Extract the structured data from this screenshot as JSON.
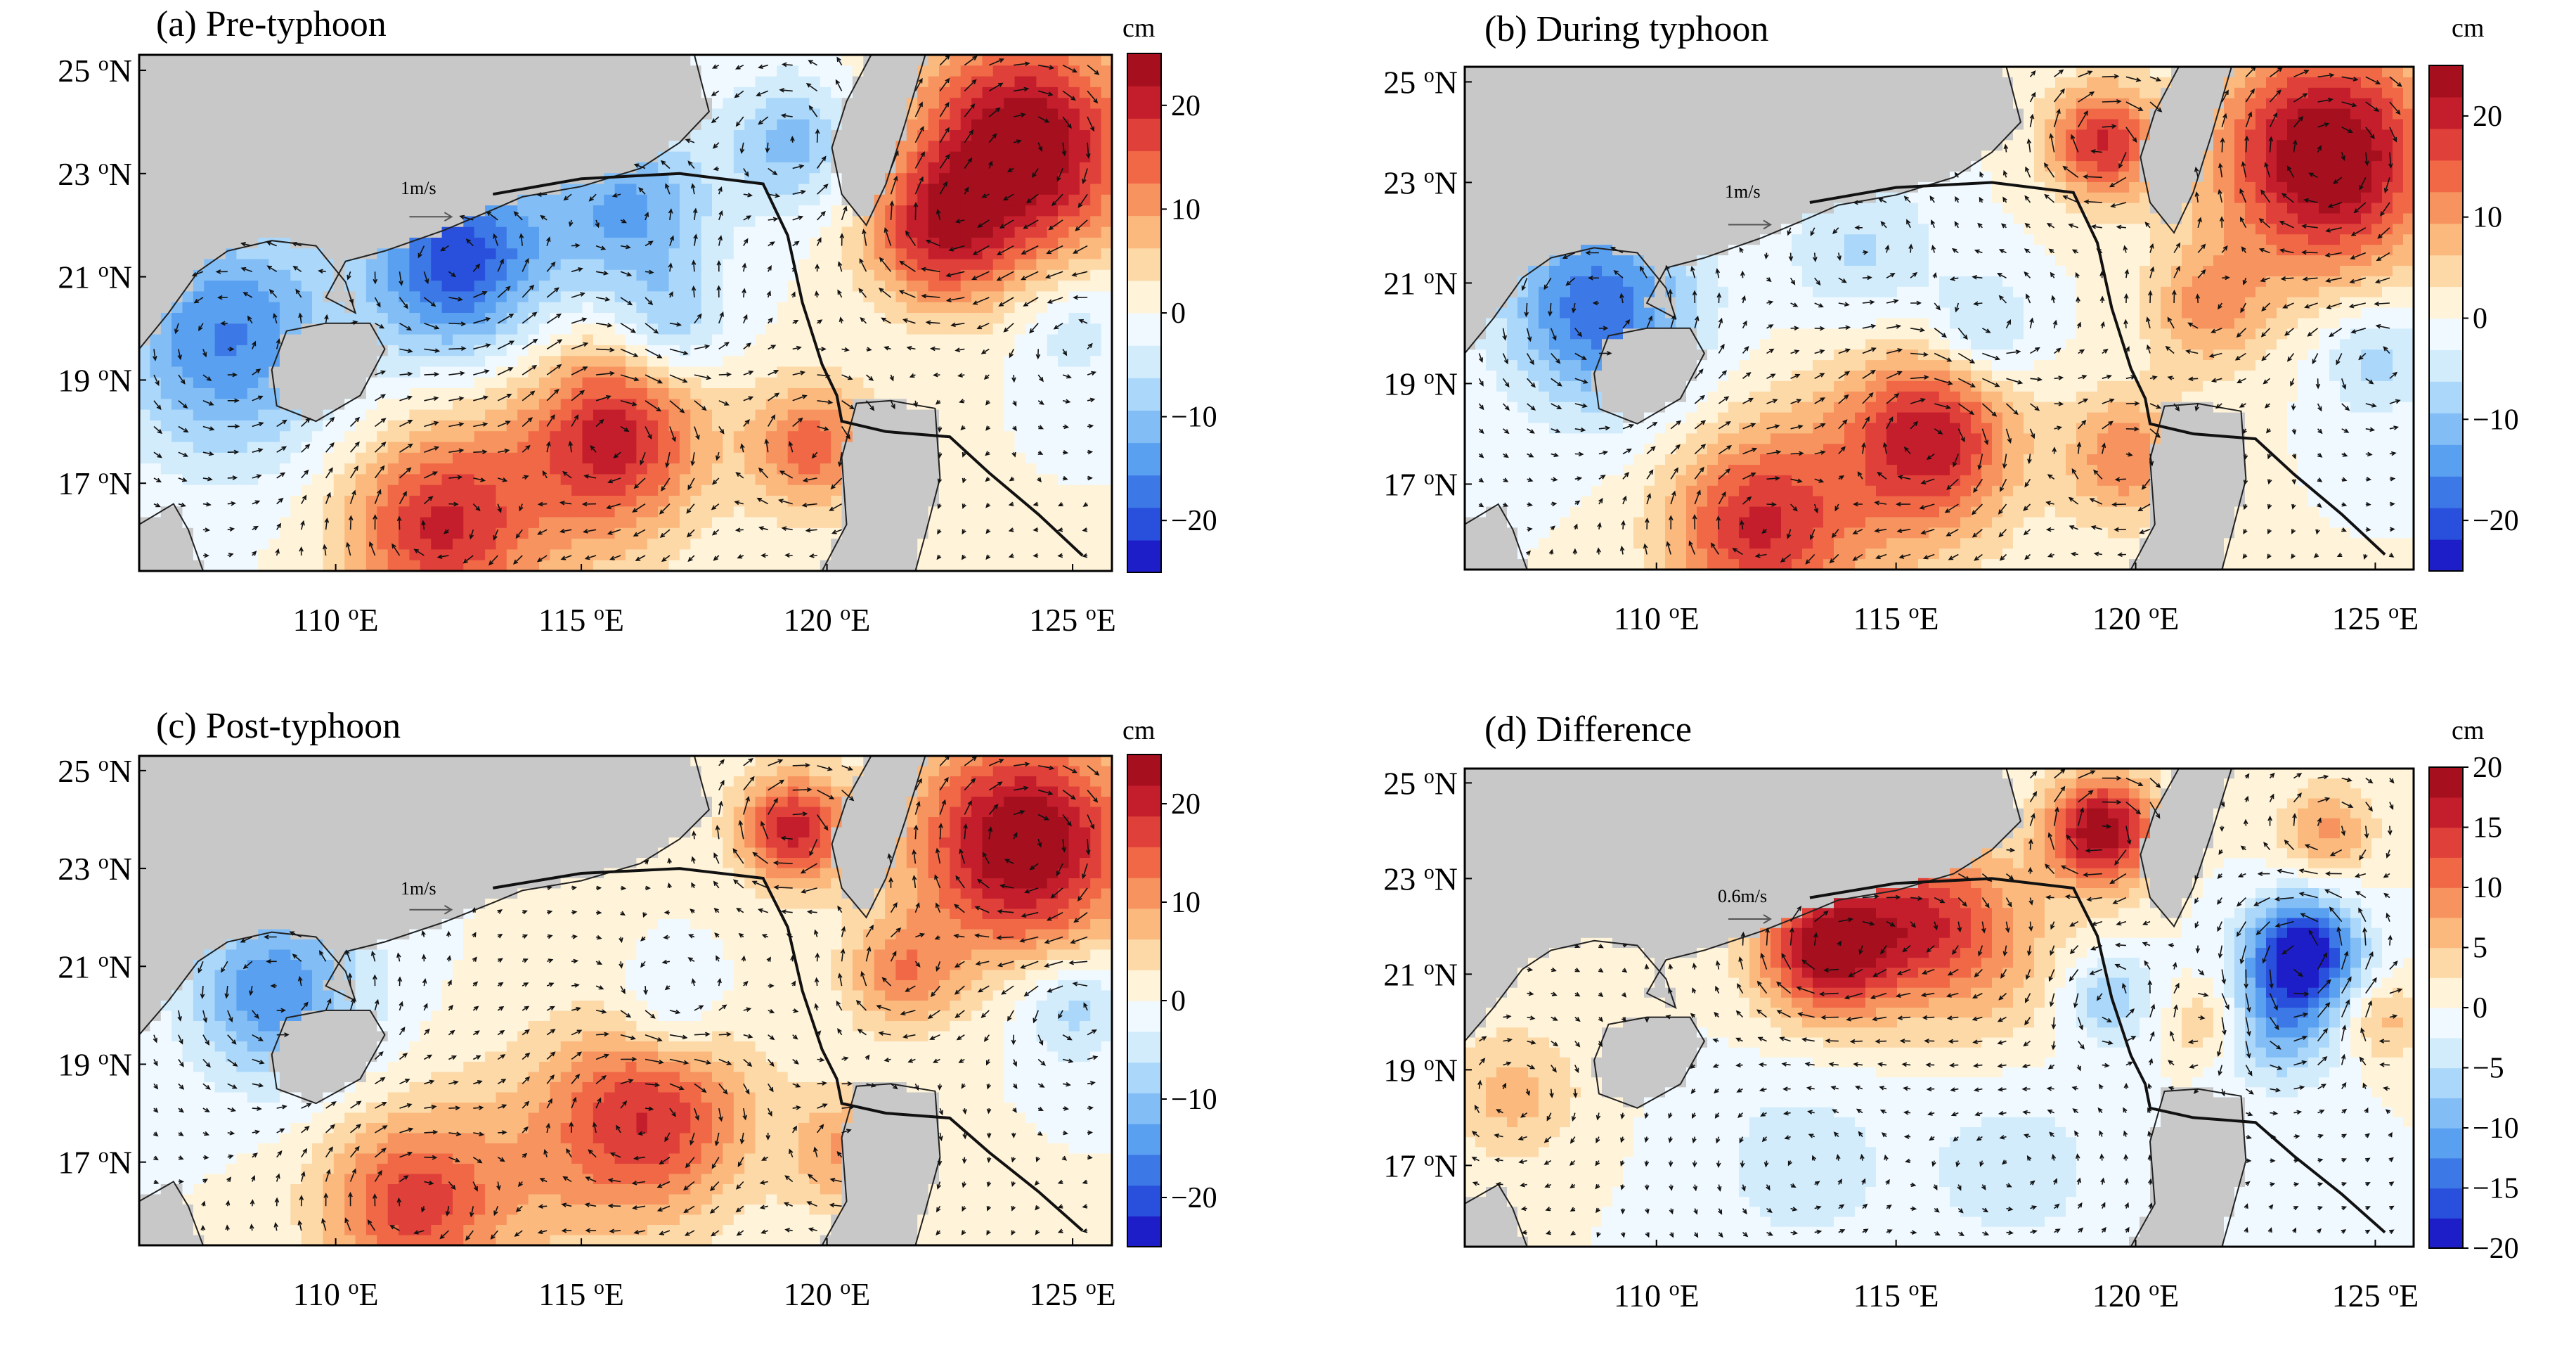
{
  "figure": {
    "axis": {
      "lat_ticks": [
        "25",
        "23",
        "21",
        "19",
        "17"
      ],
      "lat_unit": "N",
      "lon_ticks": [
        "110",
        "115",
        "120",
        "125"
      ],
      "lon_unit": "E",
      "degree_sign": "o",
      "lat_range": [
        15.3,
        25.3
      ],
      "lon_range": [
        106.0,
        125.8
      ]
    },
    "colorbar_unit": "cm",
    "panels": [
      {
        "label": "(a) Pre-typhoon",
        "vector_scale": "1m/s",
        "cbar_ticks": [
          "20",
          "10",
          "0",
          "−10",
          "−20"
        ],
        "cbar_range": [
          -25,
          25
        ]
      },
      {
        "label": "(b) During typhoon",
        "vector_scale": "1m/s",
        "cbar_ticks": [
          "20",
          "10",
          "0",
          "−10",
          "−20"
        ],
        "cbar_range": [
          -25,
          25
        ]
      },
      {
        "label": "(c) Post-typhoon",
        "vector_scale": "1m/s",
        "cbar_ticks": [
          "20",
          "10",
          "0",
          "−10",
          "−20"
        ],
        "cbar_range": [
          -25,
          25
        ]
      },
      {
        "label": "(d) Difference",
        "vector_scale": "0.6m/s",
        "cbar_ticks": [
          "20",
          "15",
          "10",
          "5",
          "0",
          "−5",
          "−10",
          "−15",
          "−20"
        ],
        "cbar_range": [
          -20,
          20
        ]
      }
    ],
    "colors": {
      "land": "#c8c8c8",
      "track": "#111111",
      "palette": [
        "#1e1ec8",
        "#2850dc",
        "#3c78e6",
        "#5aa0f0",
        "#82bef5",
        "#aad7fa",
        "#d2ecfc",
        "#f0f9ff",
        "#fff3d9",
        "#fdd9a8",
        "#fbb97e",
        "#f7935f",
        "#f06845",
        "#e0403a",
        "#c41e2c",
        "#a50f1e"
      ]
    },
    "typhoon_track": [
      [
        113.2,
        22.6
      ],
      [
        115.0,
        22.9
      ],
      [
        117.0,
        23.0
      ],
      [
        118.7,
        22.8
      ],
      [
        119.2,
        21.8
      ],
      [
        119.5,
        20.5
      ],
      [
        119.9,
        19.3
      ],
      [
        120.2,
        18.7
      ],
      [
        120.3,
        18.2
      ],
      [
        121.2,
        18.0
      ],
      [
        122.5,
        17.9
      ],
      [
        123.3,
        17.2
      ],
      [
        124.3,
        16.4
      ],
      [
        125.2,
        15.6
      ]
    ],
    "anomaly_centers": [
      [
        [
          124.0,
          23.5,
          26,
          1.6
        ],
        [
          112.0,
          16.1,
          17,
          1.3
        ],
        [
          115.8,
          18.0,
          16,
          1.2
        ],
        [
          119.7,
          17.7,
          14,
          0.9
        ],
        [
          122.2,
          21.8,
          15,
          1.0
        ],
        [
          112.5,
          21.3,
          -21,
          1.3
        ],
        [
          116.0,
          22.3,
          -13,
          1.2
        ],
        [
          107.8,
          19.8,
          -16,
          1.6
        ],
        [
          119.3,
          23.6,
          -11,
          0.9
        ],
        [
          116.8,
          20.0,
          -9,
          0.8
        ],
        [
          125.0,
          20.0,
          -6,
          0.8
        ],
        [
          114.5,
          17.0,
          7,
          1.8
        ]
      ],
      [
        [
          124.0,
          23.5,
          27,
          1.6
        ],
        [
          112.0,
          16.1,
          17,
          1.3
        ],
        [
          115.8,
          18.0,
          17,
          1.2
        ],
        [
          119.3,
          23.8,
          19,
          0.8
        ],
        [
          119.8,
          17.5,
          12,
          0.9
        ],
        [
          108.8,
          20.5,
          -18,
          1.4
        ],
        [
          114.3,
          21.6,
          -7,
          1.1
        ],
        [
          116.8,
          20.0,
          -9,
          0.8
        ],
        [
          125.0,
          19.5,
          -8,
          0.8
        ],
        [
          121.5,
          20.5,
          10,
          0.9
        ],
        [
          114.5,
          17.0,
          7,
          1.8
        ]
      ],
      [
        [
          124.0,
          23.5,
          26,
          1.6
        ],
        [
          111.5,
          16.1,
          16,
          1.3
        ],
        [
          116.5,
          18.0,
          16,
          1.4
        ],
        [
          119.3,
          23.8,
          20,
          0.8
        ],
        [
          120.5,
          17.2,
          10,
          0.9
        ],
        [
          108.8,
          20.5,
          -15,
          1.3
        ],
        [
          116.8,
          20.0,
          -7,
          0.8
        ],
        [
          125.0,
          20.2,
          -9,
          0.8
        ],
        [
          121.5,
          20.8,
          11,
          0.8
        ],
        [
          114.5,
          17.0,
          6,
          1.8
        ]
      ],
      [
        [
          113.5,
          21.5,
          18,
          1.0
        ],
        [
          115.5,
          22.2,
          12,
          1.2
        ],
        [
          119.3,
          24.0,
          20,
          0.8
        ],
        [
          117.0,
          21.3,
          5,
          1.5
        ],
        [
          123.5,
          21.5,
          -20,
          0.8
        ],
        [
          123.0,
          20.0,
          -10,
          0.9
        ],
        [
          119.4,
          20.5,
          -8,
          0.7
        ],
        [
          117.5,
          17.0,
          -4,
          1.4
        ],
        [
          113.0,
          17.0,
          -4,
          1.4
        ],
        [
          107.0,
          18.5,
          6,
          1.0
        ],
        [
          121.5,
          20.0,
          6,
          0.6
        ],
        [
          125.2,
          20.0,
          6,
          0.6
        ],
        [
          124.0,
          24.0,
          8,
          0.7
        ]
      ]
    ]
  }
}
